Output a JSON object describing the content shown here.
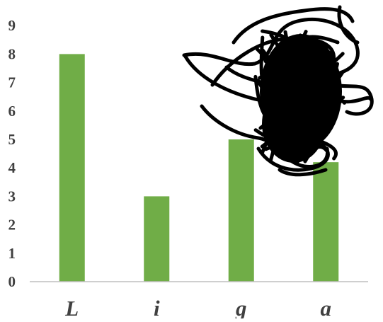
{
  "chart_data": {
    "type": "bar",
    "categories": [
      "L",
      "i",
      "g",
      "a"
    ],
    "values": [
      8,
      3,
      5,
      4.2
    ],
    "title": "",
    "xlabel": "",
    "ylabel": "",
    "ylim": [
      0,
      9
    ],
    "yticks": [
      "0",
      "1",
      "2",
      "3",
      "4",
      "5",
      "6",
      "7",
      "8",
      "9"
    ],
    "grid": false,
    "legend": "none",
    "bar_color": "#70ad47",
    "axis_color": "#bfbfbf",
    "tick_label_color": "#404040",
    "overlay": "scribble-obscuring-last-bars"
  }
}
